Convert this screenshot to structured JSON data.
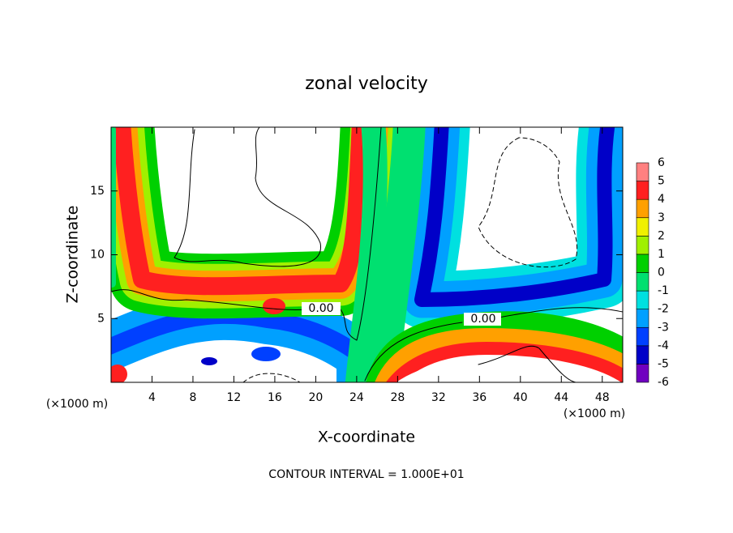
{
  "chart_data": {
    "type": "contour",
    "title": "zonal velocity",
    "x_label": "X-coordinate",
    "y_label": "Z-coordinate",
    "x_unit": "(×1000 m)",
    "y_unit": "(×1000 m)",
    "footer": "CONTOUR INTERVAL = 1.000E+01",
    "annotations": [
      "0.00",
      "0.00"
    ],
    "xlim": [
      0,
      50
    ],
    "xticks": [
      4,
      8,
      12,
      16,
      20,
      24,
      28,
      32,
      36,
      40,
      44,
      48
    ],
    "ylim": [
      0,
      20
    ],
    "yticks": [
      5,
      10,
      15
    ],
    "colorbar": {
      "levels": [
        -6,
        -5,
        -4,
        -3,
        -2,
        -1,
        0,
        1,
        2,
        3,
        4,
        5,
        6
      ],
      "colors": [
        "#7000c0",
        "#0000c8",
        "#0040ff",
        "#00a0ff",
        "#00e0e0",
        "#00e070",
        "#00d000",
        "#a0f000",
        "#f0f000",
        "#ffa000",
        "#ff2020",
        "#ff8080"
      ]
    }
  }
}
